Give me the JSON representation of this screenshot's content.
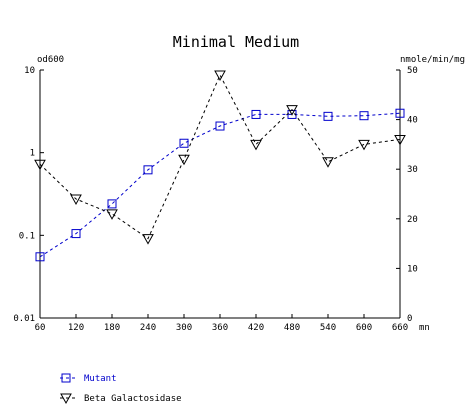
{
  "chart_data": {
    "type": "line",
    "title": "Minimal Medium",
    "x_unit": "mn",
    "x": [
      60,
      120,
      180,
      240,
      300,
      360,
      420,
      480,
      540,
      600,
      660
    ],
    "y_left": {
      "label": "od600",
      "scale": "log",
      "range": [
        0.01,
        10
      ],
      "ticks": [
        "10",
        "1",
        "0.1",
        "0.01"
      ]
    },
    "y_right": {
      "label": "nmole/min/mg",
      "scale": "linear",
      "range": [
        0,
        50
      ],
      "ticks": [
        "50",
        "40",
        "30",
        "20",
        "10",
        "0"
      ]
    },
    "grid": false,
    "legend_position": "bottom-left",
    "series": [
      {
        "name": "Mutant",
        "axis": "left",
        "marker": "square",
        "line": "dashed",
        "color": "#0000cc",
        "values": [
          0.055,
          0.105,
          0.24,
          0.62,
          1.3,
          2.1,
          2.9,
          2.9,
          2.75,
          2.8,
          3.0
        ]
      },
      {
        "name": "Beta Galactosidase",
        "axis": "right",
        "marker": "triangle-down",
        "line": "dashed",
        "color": "#000000",
        "values": [
          31,
          24,
          21,
          16,
          32,
          49,
          35,
          42,
          31.5,
          35,
          36
        ]
      }
    ]
  }
}
